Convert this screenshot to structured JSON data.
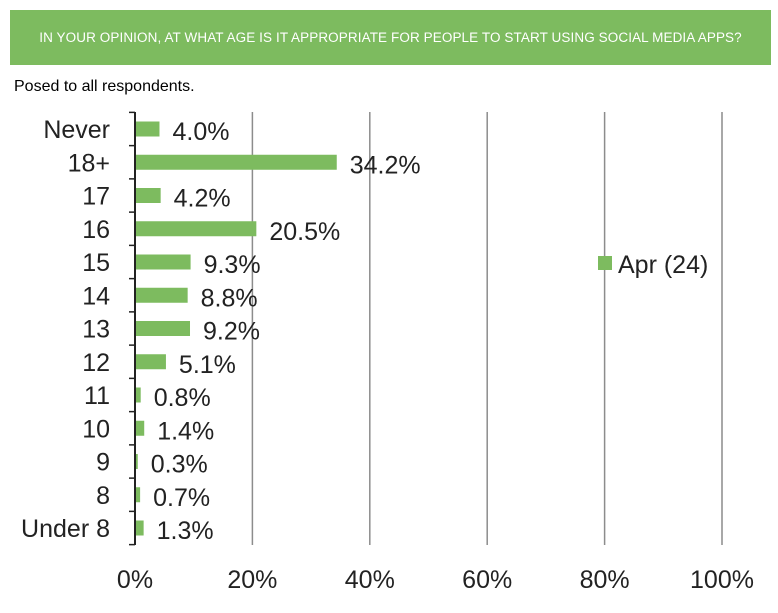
{
  "header": {
    "title": "IN YOUR OPINION, AT WHAT AGE IS IT APPROPRIATE FOR PEOPLE TO START USING SOCIAL MEDIA APPS?",
    "subtitle": "Posed to all respondents."
  },
  "chart_data": {
    "type": "bar",
    "orientation": "horizontal",
    "categories": [
      "Never",
      "18+",
      "17",
      "16",
      "15",
      "14",
      "13",
      "12",
      "11",
      "10",
      "9",
      "8",
      "Under 8"
    ],
    "series": [
      {
        "name": "Apr (24)",
        "values": [
          4.0,
          34.2,
          4.2,
          20.5,
          9.3,
          8.8,
          9.2,
          5.1,
          0.8,
          1.4,
          0.3,
          0.7,
          1.3
        ],
        "labels": [
          "4.0%",
          "34.2%",
          "4.2%",
          "20.5%",
          "9.3%",
          "8.8%",
          "9.2%",
          "5.1%",
          "0.8%",
          "1.4%",
          "0.3%",
          "0.7%",
          "1.3%"
        ]
      }
    ],
    "xlim": [
      0,
      100
    ],
    "x_ticks": [
      0,
      20,
      40,
      60,
      80,
      100
    ],
    "x_tick_labels": [
      "0%",
      "20%",
      "40%",
      "60%",
      "80%",
      "100%"
    ],
    "grid": "vertical",
    "legend_position": "right",
    "colors": {
      "bar": "#7dbb5f",
      "grid": "#8c8c8c",
      "axis": "#222222"
    }
  }
}
